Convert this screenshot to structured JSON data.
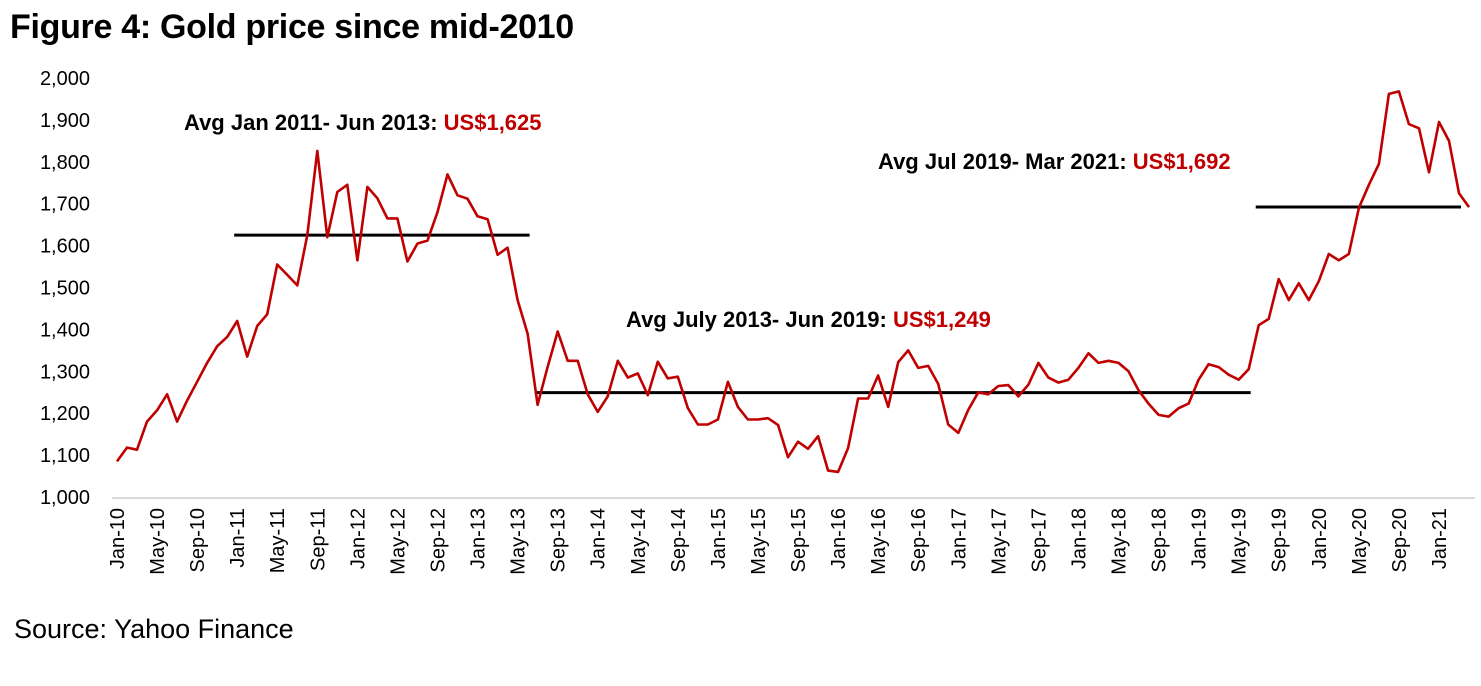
{
  "chart_data": {
    "type": "line",
    "title": "Figure 4: Gold price since mid-2010",
    "xlabel": "",
    "ylabel": "",
    "ylim": [
      1000,
      2000
    ],
    "yticks": [
      "1,000",
      "1,100",
      "1,200",
      "1,300",
      "1,400",
      "1,500",
      "1,600",
      "1,700",
      "1,800",
      "1,900",
      "2,000"
    ],
    "ytick_values": [
      1000,
      1100,
      1200,
      1300,
      1400,
      1500,
      1600,
      1700,
      1800,
      1900,
      2000
    ],
    "x_start": "Jan-10",
    "x_end": "Mar-21",
    "xticks": [
      "Jan-10",
      "May-10",
      "Sep-10",
      "Jan-11",
      "May-11",
      "Sep-11",
      "Jan-12",
      "May-12",
      "Sep-12",
      "Jan-13",
      "May-13",
      "Sep-13",
      "Jan-14",
      "May-14",
      "Sep-14",
      "Jan-15",
      "May-15",
      "Sep-15",
      "Jan-16",
      "May-16",
      "Sep-16",
      "Jan-17",
      "May-17",
      "Sep-17",
      "Jan-18",
      "May-18",
      "Sep-18",
      "Jan-19",
      "May-19",
      "Sep-19",
      "Jan-20",
      "May-20",
      "Sep-20",
      "Jan-21"
    ],
    "xtick_every_months": 4,
    "grid": false,
    "series": [
      {
        "name": "Gold price (US$/oz)",
        "color": "#c00000",
        "values": [
          1085,
          1118,
          1113,
          1180,
          1207,
          1245,
          1180,
          1230,
          1275,
          1320,
          1360,
          1382,
          1420,
          1335,
          1408,
          1436,
          1555,
          1530,
          1505,
          1625,
          1826,
          1620,
          1728,
          1745,
          1565,
          1740,
          1713,
          1665,
          1665,
          1562,
          1605,
          1612,
          1680,
          1770,
          1720,
          1712,
          1670,
          1663,
          1578,
          1595,
          1470,
          1390,
          1220,
          1310,
          1395,
          1325,
          1325,
          1245,
          1203,
          1240,
          1325,
          1285,
          1295,
          1243,
          1323,
          1283,
          1287,
          1212,
          1173,
          1173,
          1185,
          1275,
          1215,
          1185,
          1185,
          1188,
          1172,
          1095,
          1132,
          1115,
          1145,
          1063,
          1060,
          1117,
          1235,
          1235,
          1290,
          1215,
          1322,
          1350,
          1308,
          1313,
          1270,
          1173,
          1153,
          1208,
          1250,
          1245,
          1265,
          1267,
          1240,
          1268,
          1320,
          1285,
          1273,
          1280,
          1308,
          1343,
          1320,
          1325,
          1320,
          1300,
          1255,
          1223,
          1196,
          1192,
          1212,
          1223,
          1280,
          1317,
          1310,
          1292,
          1280,
          1305,
          1410,
          1425,
          1520,
          1470,
          1510,
          1470,
          1515,
          1580,
          1565,
          1580,
          1690,
          1745,
          1795,
          1962,
          1968,
          1890,
          1880,
          1775,
          1895,
          1850,
          1725,
          1692
        ]
      }
    ],
    "averages": [
      {
        "label": "Avg Jan 2011- Jun 2013: ",
        "value_label": "US$1,625",
        "value": 1625,
        "start_index": 12,
        "end_index": 41
      },
      {
        "label": "Avg July 2013- Jun 2019: ",
        "value_label": "US$1,249",
        "value": 1249,
        "start_index": 42,
        "end_index": 113
      },
      {
        "label": "Avg Jul 2019- Mar 2021: ",
        "value_label": "US$1,692",
        "value": 1692,
        "start_index": 114,
        "end_index": 134
      }
    ],
    "colors": {
      "line": "#c00000",
      "average": "#000000",
      "highlight_text": "#c00000",
      "axis": "#d9d9d9"
    }
  },
  "footer": {
    "source": "Source: Yahoo Finance"
  }
}
